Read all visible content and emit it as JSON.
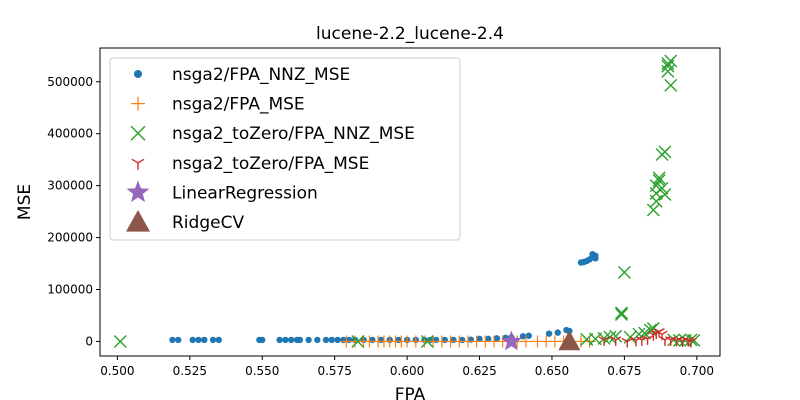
{
  "chart_data": {
    "type": "scatter",
    "title": "lucene-2.2_lucene-2.4",
    "xlabel": "FPA",
    "ylabel": "MSE",
    "xlim": [
      0.494,
      0.708
    ],
    "ylim": [
      -28000,
      565000
    ],
    "xticks": [
      0.5,
      0.525,
      0.55,
      0.575,
      0.6,
      0.625,
      0.65,
      0.675,
      0.7
    ],
    "xtick_labels": [
      "0.500",
      "0.525",
      "0.550",
      "0.575",
      "0.600",
      "0.625",
      "0.650",
      "0.675",
      "0.700"
    ],
    "yticks": [
      0,
      100000,
      200000,
      300000,
      400000,
      500000
    ],
    "ytick_labels": [
      "0",
      "100000",
      "200000",
      "300000",
      "400000",
      "500000"
    ],
    "grid": false,
    "legend_position": "upper-left",
    "series": [
      {
        "name": "nsga2/FPA_NNZ_MSE",
        "marker": "dot",
        "color": "#1f77b4",
        "points": [
          [
            0.519,
            3000
          ],
          [
            0.521,
            3000
          ],
          [
            0.526,
            3000
          ],
          [
            0.528,
            3000
          ],
          [
            0.53,
            3000
          ],
          [
            0.533,
            3000
          ],
          [
            0.535,
            3000
          ],
          [
            0.549,
            3000
          ],
          [
            0.55,
            3000
          ],
          [
            0.556,
            3000
          ],
          [
            0.558,
            3000
          ],
          [
            0.56,
            3000
          ],
          [
            0.562,
            3000
          ],
          [
            0.563,
            3000
          ],
          [
            0.566,
            3000
          ],
          [
            0.569,
            3000
          ],
          [
            0.572,
            3000
          ],
          [
            0.574,
            3000
          ],
          [
            0.576,
            3000
          ],
          [
            0.578,
            3000
          ],
          [
            0.58,
            3000
          ],
          [
            0.582,
            3000
          ],
          [
            0.585,
            3000
          ],
          [
            0.588,
            3000
          ],
          [
            0.591,
            3000
          ],
          [
            0.594,
            3000
          ],
          [
            0.597,
            3000
          ],
          [
            0.6,
            3000
          ],
          [
            0.603,
            3000
          ],
          [
            0.606,
            3000
          ],
          [
            0.608,
            3000
          ],
          [
            0.61,
            3000
          ],
          [
            0.613,
            3000
          ],
          [
            0.616,
            3000
          ],
          [
            0.619,
            3000
          ],
          [
            0.622,
            3500
          ],
          [
            0.625,
            5000
          ],
          [
            0.628,
            5000
          ],
          [
            0.631,
            6000
          ],
          [
            0.634,
            7000
          ],
          [
            0.636,
            8000
          ],
          [
            0.64,
            10000
          ],
          [
            0.642,
            11000
          ],
          [
            0.649,
            15000
          ],
          [
            0.652,
            17000
          ],
          [
            0.655,
            22000
          ],
          [
            0.656,
            20000
          ],
          [
            0.66,
            152000
          ],
          [
            0.661,
            153000
          ],
          [
            0.662,
            155000
          ],
          [
            0.663,
            158000
          ],
          [
            0.664,
            162000
          ],
          [
            0.664,
            168000
          ],
          [
            0.665,
            160000
          ],
          [
            0.665,
            165000
          ]
        ]
      },
      {
        "name": "nsga2/FPA_MSE",
        "marker": "plus",
        "color": "#ff7f0e",
        "points": [
          [
            0.579,
            0
          ],
          [
            0.582,
            0
          ],
          [
            0.585,
            0
          ],
          [
            0.587,
            0
          ],
          [
            0.59,
            0
          ],
          [
            0.592,
            0
          ],
          [
            0.594,
            0
          ],
          [
            0.596,
            0
          ],
          [
            0.598,
            0
          ],
          [
            0.6,
            0
          ],
          [
            0.603,
            0
          ],
          [
            0.606,
            0
          ],
          [
            0.609,
            0
          ],
          [
            0.612,
            0
          ],
          [
            0.615,
            0
          ],
          [
            0.618,
            0
          ],
          [
            0.621,
            0
          ],
          [
            0.624,
            0
          ],
          [
            0.627,
            0
          ],
          [
            0.63,
            0
          ],
          [
            0.633,
            0
          ],
          [
            0.638,
            0
          ],
          [
            0.641,
            0
          ],
          [
            0.645,
            0
          ],
          [
            0.648,
            0
          ],
          [
            0.651,
            0
          ],
          [
            0.654,
            0
          ],
          [
            0.657,
            0
          ],
          [
            0.66,
            0
          ],
          [
            0.663,
            0
          ]
        ]
      },
      {
        "name": "nsga2_toZero/FPA_NNZ_MSE",
        "marker": "x",
        "color": "#2ca02c",
        "points": [
          [
            0.501,
            0
          ],
          [
            0.583,
            0
          ],
          [
            0.607,
            0
          ],
          [
            0.662,
            4000
          ],
          [
            0.665,
            5000
          ],
          [
            0.668,
            6000
          ],
          [
            0.67,
            8000
          ],
          [
            0.672,
            10000
          ],
          [
            0.674,
            52000
          ],
          [
            0.674,
            55000
          ],
          [
            0.675,
            133000
          ],
          [
            0.677,
            8000
          ],
          [
            0.68,
            14000
          ],
          [
            0.682,
            16000
          ],
          [
            0.684,
            22000
          ],
          [
            0.685,
            25000
          ],
          [
            0.685,
            253000
          ],
          [
            0.686,
            270000
          ],
          [
            0.686,
            285000
          ],
          [
            0.686,
            300000
          ],
          [
            0.687,
            310000
          ],
          [
            0.687,
            315000
          ],
          [
            0.688,
            295000
          ],
          [
            0.688,
            360000
          ],
          [
            0.689,
            365000
          ],
          [
            0.689,
            283000
          ],
          [
            0.69,
            520000
          ],
          [
            0.69,
            530000
          ],
          [
            0.69,
            535000
          ],
          [
            0.691,
            540000
          ],
          [
            0.691,
            493000
          ],
          [
            0.692,
            3000
          ],
          [
            0.694,
            2000
          ],
          [
            0.696,
            2000
          ],
          [
            0.698,
            3000
          ],
          [
            0.699,
            2000
          ]
        ]
      },
      {
        "name": "nsga2_toZero/FPA_MSE",
        "marker": "tri",
        "color": "#d62728",
        "points": [
          [
            0.668,
            3000
          ],
          [
            0.672,
            3000
          ],
          [
            0.676,
            0
          ],
          [
            0.679,
            2000
          ],
          [
            0.681,
            3000
          ],
          [
            0.683,
            5000
          ],
          [
            0.685,
            13000
          ],
          [
            0.686,
            16000
          ],
          [
            0.687,
            19000
          ],
          [
            0.688,
            14000
          ],
          [
            0.689,
            3000
          ],
          [
            0.691,
            3000
          ],
          [
            0.693,
            2000
          ],
          [
            0.695,
            1000
          ],
          [
            0.697,
            2000
          ],
          [
            0.698,
            0
          ]
        ]
      },
      {
        "name": "LinearRegression",
        "marker": "star",
        "color": "#9467bd",
        "points": [
          [
            0.636,
            0
          ]
        ]
      },
      {
        "name": "RidgeCV",
        "marker": "triangle",
        "color": "#8c564b",
        "points": [
          [
            0.656,
            0
          ]
        ]
      }
    ]
  }
}
